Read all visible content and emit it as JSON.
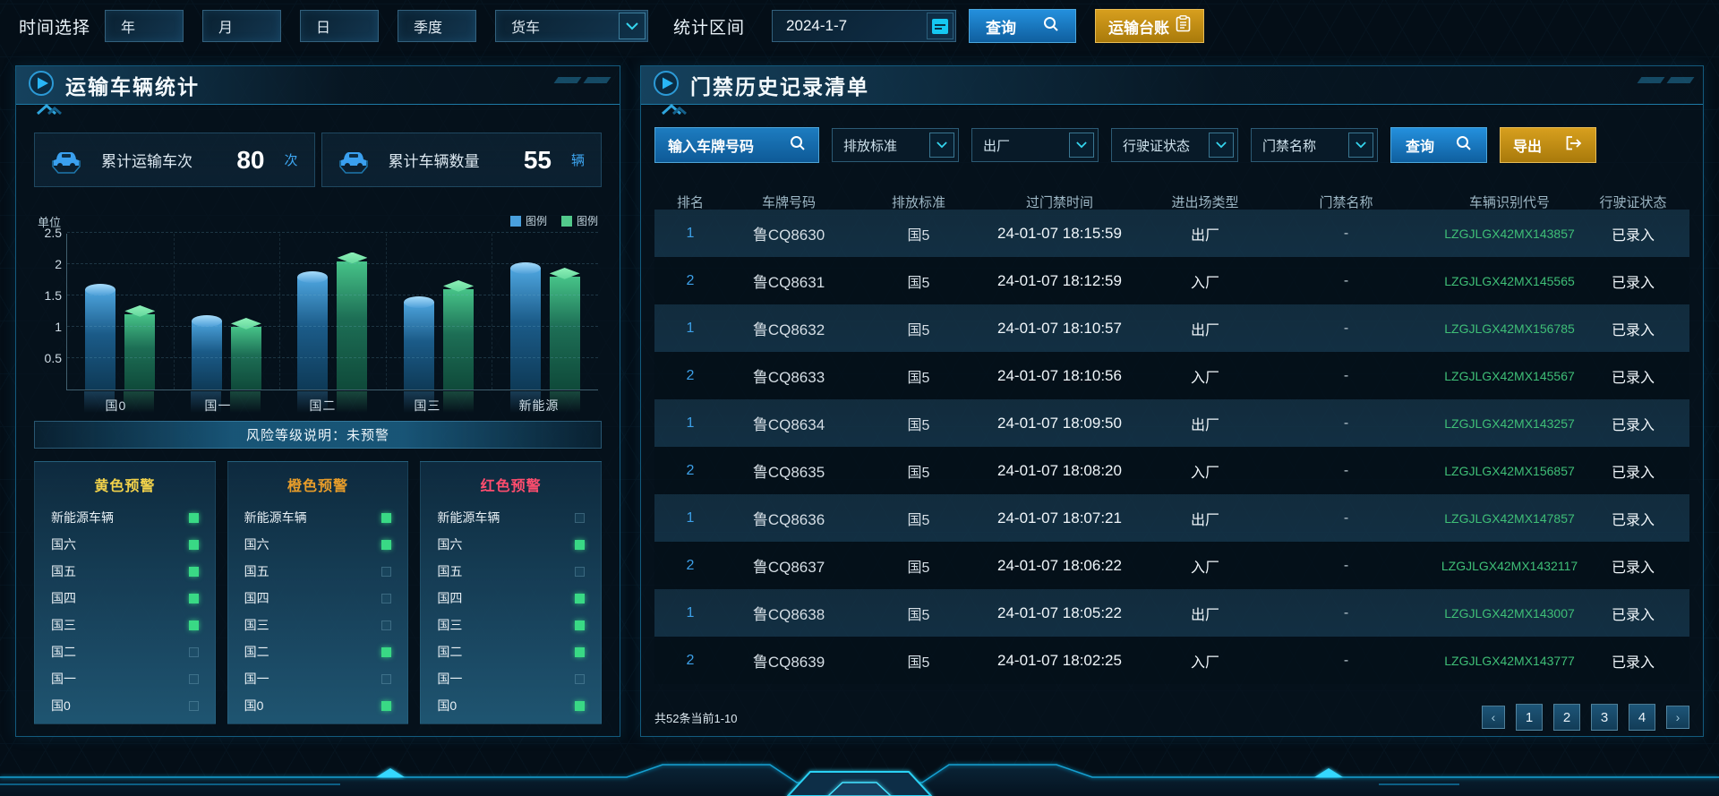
{
  "topbar": {
    "time_label": "时间选择",
    "time_buttons": [
      "年",
      "月",
      "日",
      "季度"
    ],
    "vehicle_select": {
      "value": "货车"
    },
    "range_label": "统计区间",
    "date_value": "2024-1-7",
    "query": {
      "label": "查询"
    },
    "ledger": {
      "label": "运输台账"
    }
  },
  "left_panel": {
    "title": "运输车辆统计",
    "stats": [
      {
        "label": "累计运输车次",
        "value": "80",
        "unit": "次"
      },
      {
        "label": "累计车辆数量",
        "value": "55",
        "unit": "辆"
      }
    ],
    "risk_banner": "风险等级说明：未预警",
    "warnings": [
      {
        "title": "黄色预警",
        "title_color": "#f2d24b",
        "items": [
          {
            "label": "新能源车辆",
            "lit": true
          },
          {
            "label": "国六",
            "lit": true
          },
          {
            "label": "国五",
            "lit": true
          },
          {
            "label": "国四",
            "lit": true
          },
          {
            "label": "国三",
            "lit": true
          },
          {
            "label": "国二",
            "lit": false
          },
          {
            "label": "国一",
            "lit": false
          },
          {
            "label": "国0",
            "lit": false
          }
        ]
      },
      {
        "title": "橙色预警",
        "title_color": "#e89d2a",
        "items": [
          {
            "label": "新能源车辆",
            "lit": true
          },
          {
            "label": "国六",
            "lit": true
          },
          {
            "label": "国五",
            "lit": false
          },
          {
            "label": "国四",
            "lit": false
          },
          {
            "label": "国三",
            "lit": false
          },
          {
            "label": "国二",
            "lit": true
          },
          {
            "label": "国一",
            "lit": false
          },
          {
            "label": "国0",
            "lit": true
          }
        ]
      },
      {
        "title": "红色预警",
        "title_color": "#ff4d6e",
        "items": [
          {
            "label": "新能源车辆",
            "lit": false
          },
          {
            "label": "国六",
            "lit": true
          },
          {
            "label": "国五",
            "lit": false
          },
          {
            "label": "国四",
            "lit": true
          },
          {
            "label": "国三",
            "lit": true
          },
          {
            "label": "国二",
            "lit": true
          },
          {
            "label": "国一",
            "lit": false
          },
          {
            "label": "国0",
            "lit": true
          }
        ]
      }
    ]
  },
  "chart_data": {
    "type": "bar",
    "unit_label": "单位",
    "categories": [
      "国0",
      "国一",
      "国二",
      "国三",
      "新能源"
    ],
    "series": [
      {
        "name": "图例",
        "color": "#4aa0dd",
        "values": [
          1.6,
          1.1,
          1.8,
          1.4,
          1.95
        ]
      },
      {
        "name": "图例",
        "color": "#52c98b",
        "values": [
          1.2,
          1.0,
          2.05,
          1.6,
          1.8
        ]
      }
    ],
    "ylim": [
      0,
      2.5
    ],
    "yticks": [
      0.5,
      1,
      1.5,
      2,
      2.5
    ],
    "grid": "dashed",
    "legend_position": "top-right"
  },
  "right_panel": {
    "title": "门禁历史记录清单",
    "filters": {
      "plate_input": {
        "placeholder": "输入车牌号码"
      },
      "dropdowns": [
        "排放标准",
        "出厂",
        "行驶证状态",
        "门禁名称"
      ],
      "query": {
        "label": "查询"
      },
      "export": {
        "label": "导出"
      }
    },
    "table": {
      "headers": [
        "排名",
        "车牌号码",
        "排放标准",
        "过门禁时间",
        "进出场类型",
        "门禁名称",
        "车辆识别代号",
        "行驶证状态"
      ],
      "rows": [
        [
          "1",
          "鲁CQ8630",
          "国5",
          "24-01-07 18:15:59",
          "出厂",
          "-",
          "LZGJLGX42MX143857",
          "已录入"
        ],
        [
          "2",
          "鲁CQ8631",
          "国5",
          "24-01-07 18:12:59",
          "入厂",
          "-",
          "LZGJLGX42MX145565",
          "已录入"
        ],
        [
          "1",
          "鲁CQ8632",
          "国5",
          "24-01-07 18:10:57",
          "出厂",
          "-",
          "LZGJLGX42MX156785",
          "已录入"
        ],
        [
          "2",
          "鲁CQ8633",
          "国5",
          "24-01-07 18:10:56",
          "入厂",
          "-",
          "LZGJLGX42MX145567",
          "已录入"
        ],
        [
          "1",
          "鲁CQ8634",
          "国5",
          "24-01-07 18:09:50",
          "出厂",
          "-",
          "LZGJLGX42MX143257",
          "已录入"
        ],
        [
          "2",
          "鲁CQ8635",
          "国5",
          "24-01-07 18:08:20",
          "入厂",
          "-",
          "LZGJLGX42MX156857",
          "已录入"
        ],
        [
          "1",
          "鲁CQ8636",
          "国5",
          "24-01-07 18:07:21",
          "出厂",
          "-",
          "LZGJLGX42MX147857",
          "已录入"
        ],
        [
          "2",
          "鲁CQ8637",
          "国5",
          "24-01-07 18:06:22",
          "入厂",
          "-",
          "LZGJLGX42MX1432117",
          "已录入"
        ],
        [
          "1",
          "鲁CQ8638",
          "国5",
          "24-01-07 18:05:22",
          "出厂",
          "-",
          "LZGJLGX42MX143007",
          "已录入"
        ],
        [
          "2",
          "鲁CQ8639",
          "国5",
          "24-01-07 18:02:25",
          "入厂",
          "-",
          "LZGJLGX42MX143777",
          "已录入"
        ]
      ]
    },
    "footer": {
      "summary": "共52条当前1-10",
      "pagination": {
        "prev": "‹",
        "pages": [
          "1",
          "2",
          "3",
          "4"
        ],
        "next": "›"
      }
    }
  }
}
